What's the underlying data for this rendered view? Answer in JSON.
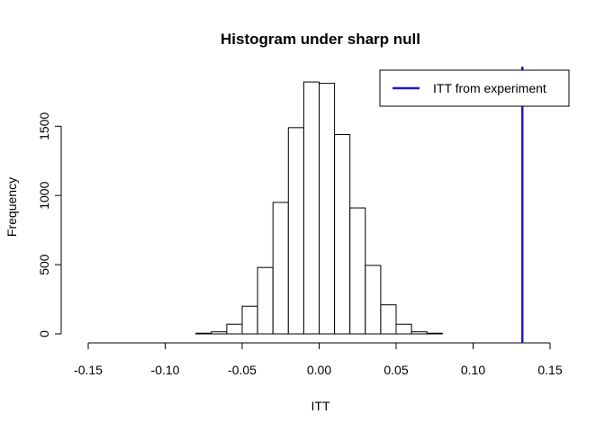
{
  "chart_data": {
    "type": "bar",
    "title": "Histogram under sharp null",
    "xlabel": "ITT",
    "ylabel": "Frequency",
    "xlim": [
      -0.15,
      0.15
    ],
    "ylim": [
      0,
      1900
    ],
    "x_ticks": [
      -0.15,
      -0.1,
      -0.05,
      0.0,
      0.05,
      0.1,
      0.15
    ],
    "x_tick_labels": [
      "-0.15",
      "-0.10",
      "-0.05",
      "0.00",
      "0.05",
      "0.10",
      "0.15"
    ],
    "y_ticks": [
      0,
      500,
      1000,
      1500
    ],
    "y_tick_labels": [
      "0",
      "500",
      "1000",
      "1500"
    ],
    "bin_edges": [
      -0.08,
      -0.07,
      -0.06,
      -0.05,
      -0.04,
      -0.03,
      -0.02,
      -0.01,
      0.0,
      0.01,
      0.02,
      0.03,
      0.04,
      0.05,
      0.06,
      0.07,
      0.08
    ],
    "counts": [
      5,
      15,
      70,
      200,
      480,
      950,
      1490,
      1820,
      1810,
      1440,
      910,
      495,
      210,
      70,
      15,
      5
    ],
    "reference_line": {
      "x": 0.132,
      "color": "#1a1acd",
      "name": "ITT from experiment"
    },
    "legend": {
      "position": "top-right",
      "entries": [
        "ITT from experiment"
      ]
    }
  }
}
